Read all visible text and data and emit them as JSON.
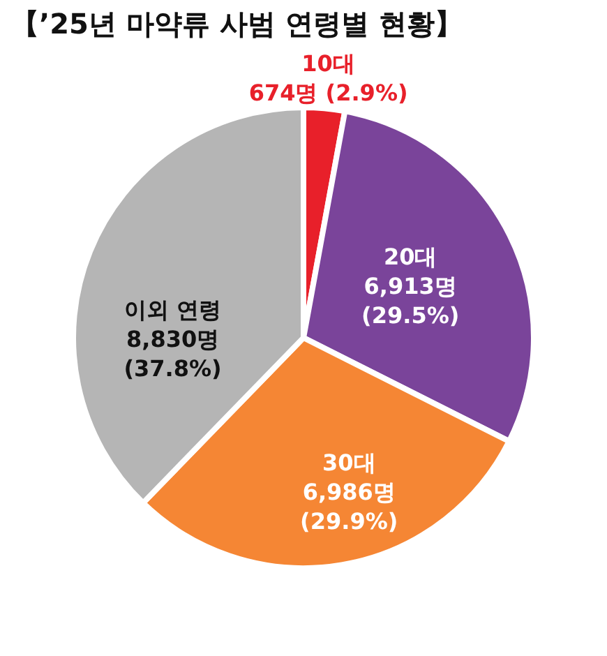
{
  "chart_data": {
    "type": "pie",
    "title": "【’25년 마약류 사범 연령별 현황】",
    "categories": [
      "10대",
      "20대",
      "30대",
      "이외 연령"
    ],
    "values": [
      674,
      6913,
      6986,
      8830
    ],
    "colors": [
      "#e8202a",
      "#7a449a",
      "#f58634",
      "#b5b5b5"
    ],
    "value_labels": [
      "674명 (2.9%)",
      "6,913명 (29.5%)",
      "6,986명 (29.9%)",
      "8,830명 (37.8%)"
    ]
  }
}
